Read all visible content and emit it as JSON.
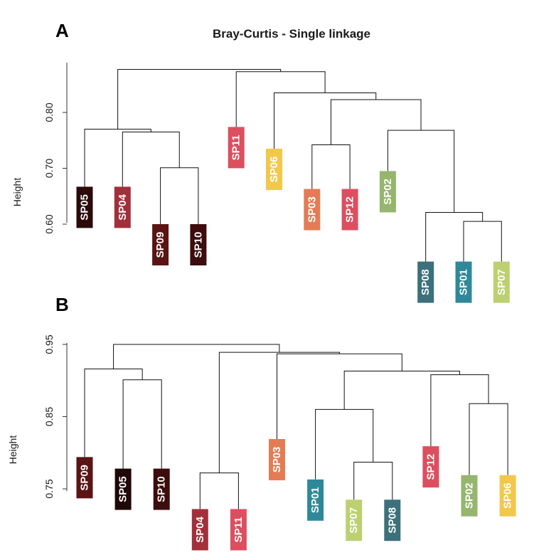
{
  "chart_data": [
    {
      "type": "dendrogram",
      "panel": "A",
      "title": "Bray-Curtis - Single linkage",
      "ylabel": "Height",
      "ylim": [
        0.5,
        0.905
      ],
      "yticks": [
        "0.60",
        "0.70",
        "0.80"
      ],
      "ytick_values": [
        0.6,
        0.7,
        0.8
      ],
      "leaves": [
        {
          "id": "SP05",
          "color": "#2b0a0a",
          "height": 0.667
        },
        {
          "id": "SP04",
          "color": "#a1303b",
          "height": 0.667
        },
        {
          "id": "SP09",
          "color": "#5a1414",
          "height": 0.6
        },
        {
          "id": "SP10",
          "color": "#3d0c0c",
          "height": 0.6
        },
        {
          "id": "SP11",
          "color": "#dc4f5f",
          "height": 0.774
        },
        {
          "id": "SP06",
          "color": "#f2c84b",
          "height": 0.735
        },
        {
          "id": "SP03",
          "color": "#e37c55",
          "height": 0.663
        },
        {
          "id": "SP12",
          "color": "#dc4f5f",
          "height": 0.663
        },
        {
          "id": "SP02",
          "color": "#96b56e",
          "height": 0.695
        },
        {
          "id": "SP08",
          "color": "#3c707a",
          "height": 0.533
        },
        {
          "id": "SP01",
          "color": "#2f8899",
          "height": 0.533
        },
        {
          "id": "SP07",
          "color": "#bdd071",
          "height": 0.533
        }
      ],
      "merges": [
        {
          "left": "leaf:SP01",
          "right": "leaf:SP07",
          "height": 0.605
        },
        {
          "left": "leaf:SP09",
          "right": "leaf:SP10",
          "height": 0.701
        },
        {
          "left": "leaf:SP08",
          "right": "node:0",
          "height": 0.621
        },
        {
          "left": "leaf:SP03",
          "right": "leaf:SP12",
          "height": 0.742
        },
        {
          "left": "leaf:SP04",
          "right": "node:1",
          "height": 0.765
        },
        {
          "left": "leaf:SP02",
          "right": "node:2",
          "height": 0.768
        },
        {
          "left": "leaf:SP05",
          "right": "node:4",
          "height": 0.77
        },
        {
          "left": "node:3",
          "right": "node:5",
          "height": 0.823
        },
        {
          "left": "leaf:SP06",
          "right": "node:7",
          "height": 0.835
        },
        {
          "left": "leaf:SP11",
          "right": "node:8",
          "height": 0.873
        },
        {
          "left": "node:6",
          "right": "node:9",
          "height": 0.877
        }
      ]
    },
    {
      "type": "dendrogram",
      "panel": "B",
      "title": "",
      "ylabel": "Height",
      "ylim": [
        0.7,
        0.975
      ],
      "yticks": [
        "0.75",
        "0.85",
        "0.95"
      ],
      "ytick_values": [
        0.75,
        0.85,
        0.95
      ],
      "leaves": [
        {
          "id": "SP09",
          "color": "#5a1414",
          "height": 0.794
        },
        {
          "id": "SP05",
          "color": "#1f0808",
          "height": 0.778
        },
        {
          "id": "SP10",
          "color": "#3d0c0c",
          "height": 0.778
        },
        {
          "id": "SP04",
          "color": "#a1303b",
          "height": 0.722
        },
        {
          "id": "SP11",
          "color": "#dc4f5f",
          "height": 0.722
        },
        {
          "id": "SP03",
          "color": "#e37c55",
          "height": 0.819
        },
        {
          "id": "SP01",
          "color": "#2f8899",
          "height": 0.763
        },
        {
          "id": "SP07",
          "color": "#bdd071",
          "height": 0.735
        },
        {
          "id": "SP08",
          "color": "#3c707a",
          "height": 0.735
        },
        {
          "id": "SP12",
          "color": "#dc4f5f",
          "height": 0.809
        },
        {
          "id": "SP02",
          "color": "#96b56e",
          "height": 0.769
        },
        {
          "id": "SP06",
          "color": "#f2c84b",
          "height": 0.769
        }
      ],
      "merges": [
        {
          "left": "leaf:SP04",
          "right": "leaf:SP11",
          "height": 0.772
        },
        {
          "left": "leaf:SP07",
          "right": "leaf:SP08",
          "height": 0.787
        },
        {
          "left": "node:1",
          "right": "leaf:SP01",
          "height": 0.86
        },
        {
          "left": "leaf:SP02",
          "right": "leaf:SP06",
          "height": 0.868
        },
        {
          "left": "leaf:SP05",
          "right": "leaf:SP10",
          "height": 0.901
        },
        {
          "left": "leaf:SP12",
          "right": "node:3",
          "height": 0.908
        },
        {
          "left": "node:2",
          "right": "node:5",
          "height": 0.913
        },
        {
          "left": "leaf:SP09",
          "right": "node:4",
          "height": 0.916
        },
        {
          "left": "leaf:SP03",
          "right": "node:6",
          "height": 0.937
        },
        {
          "left": "node:0",
          "right": "node:8",
          "height": 0.939
        },
        {
          "left": "node:7",
          "right": "node:9",
          "height": 0.95
        }
      ]
    }
  ]
}
